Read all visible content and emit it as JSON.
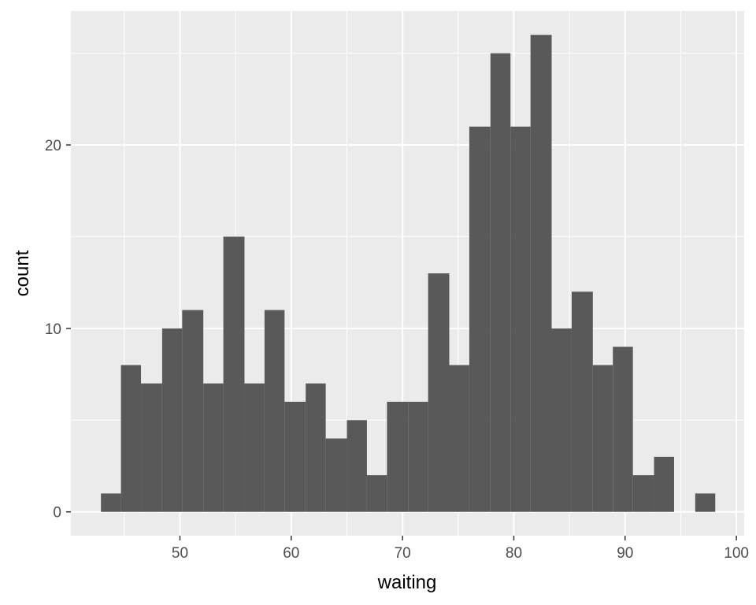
{
  "chart_data": {
    "type": "bar",
    "subtype": "histogram",
    "title": "",
    "xlabel": "waiting",
    "ylabel": "count",
    "x_bin_edges": [
      42.9,
      44.7,
      46.5,
      48.4,
      50.2,
      52.1,
      53.9,
      55.8,
      57.6,
      59.4,
      61.3,
      63.1,
      65.0,
      66.8,
      68.6,
      70.5,
      72.3,
      74.2,
      76.0,
      77.9,
      79.7,
      81.5,
      83.4,
      85.2,
      87.1,
      88.9,
      90.7,
      92.6,
      94.4,
      96.3,
      98.1
    ],
    "values": [
      1,
      8,
      7,
      10,
      11,
      7,
      15,
      7,
      11,
      6,
      7,
      4,
      5,
      2,
      6,
      6,
      13,
      8,
      21,
      25,
      21,
      26,
      10,
      12,
      8,
      9,
      2,
      3,
      0,
      1
    ],
    "xlim": [
      40.2,
      100.7
    ],
    "ylim": [
      -1.3,
      27.3
    ],
    "x_ticks": [
      50,
      60,
      70,
      80,
      90,
      100
    ],
    "y_ticks": [
      0,
      10,
      20
    ],
    "grid": true,
    "colors": {
      "bar": "#595959",
      "panel": "#ebebeb",
      "grid_major": "#ffffff",
      "tick_text": "#4d4d4d"
    }
  }
}
